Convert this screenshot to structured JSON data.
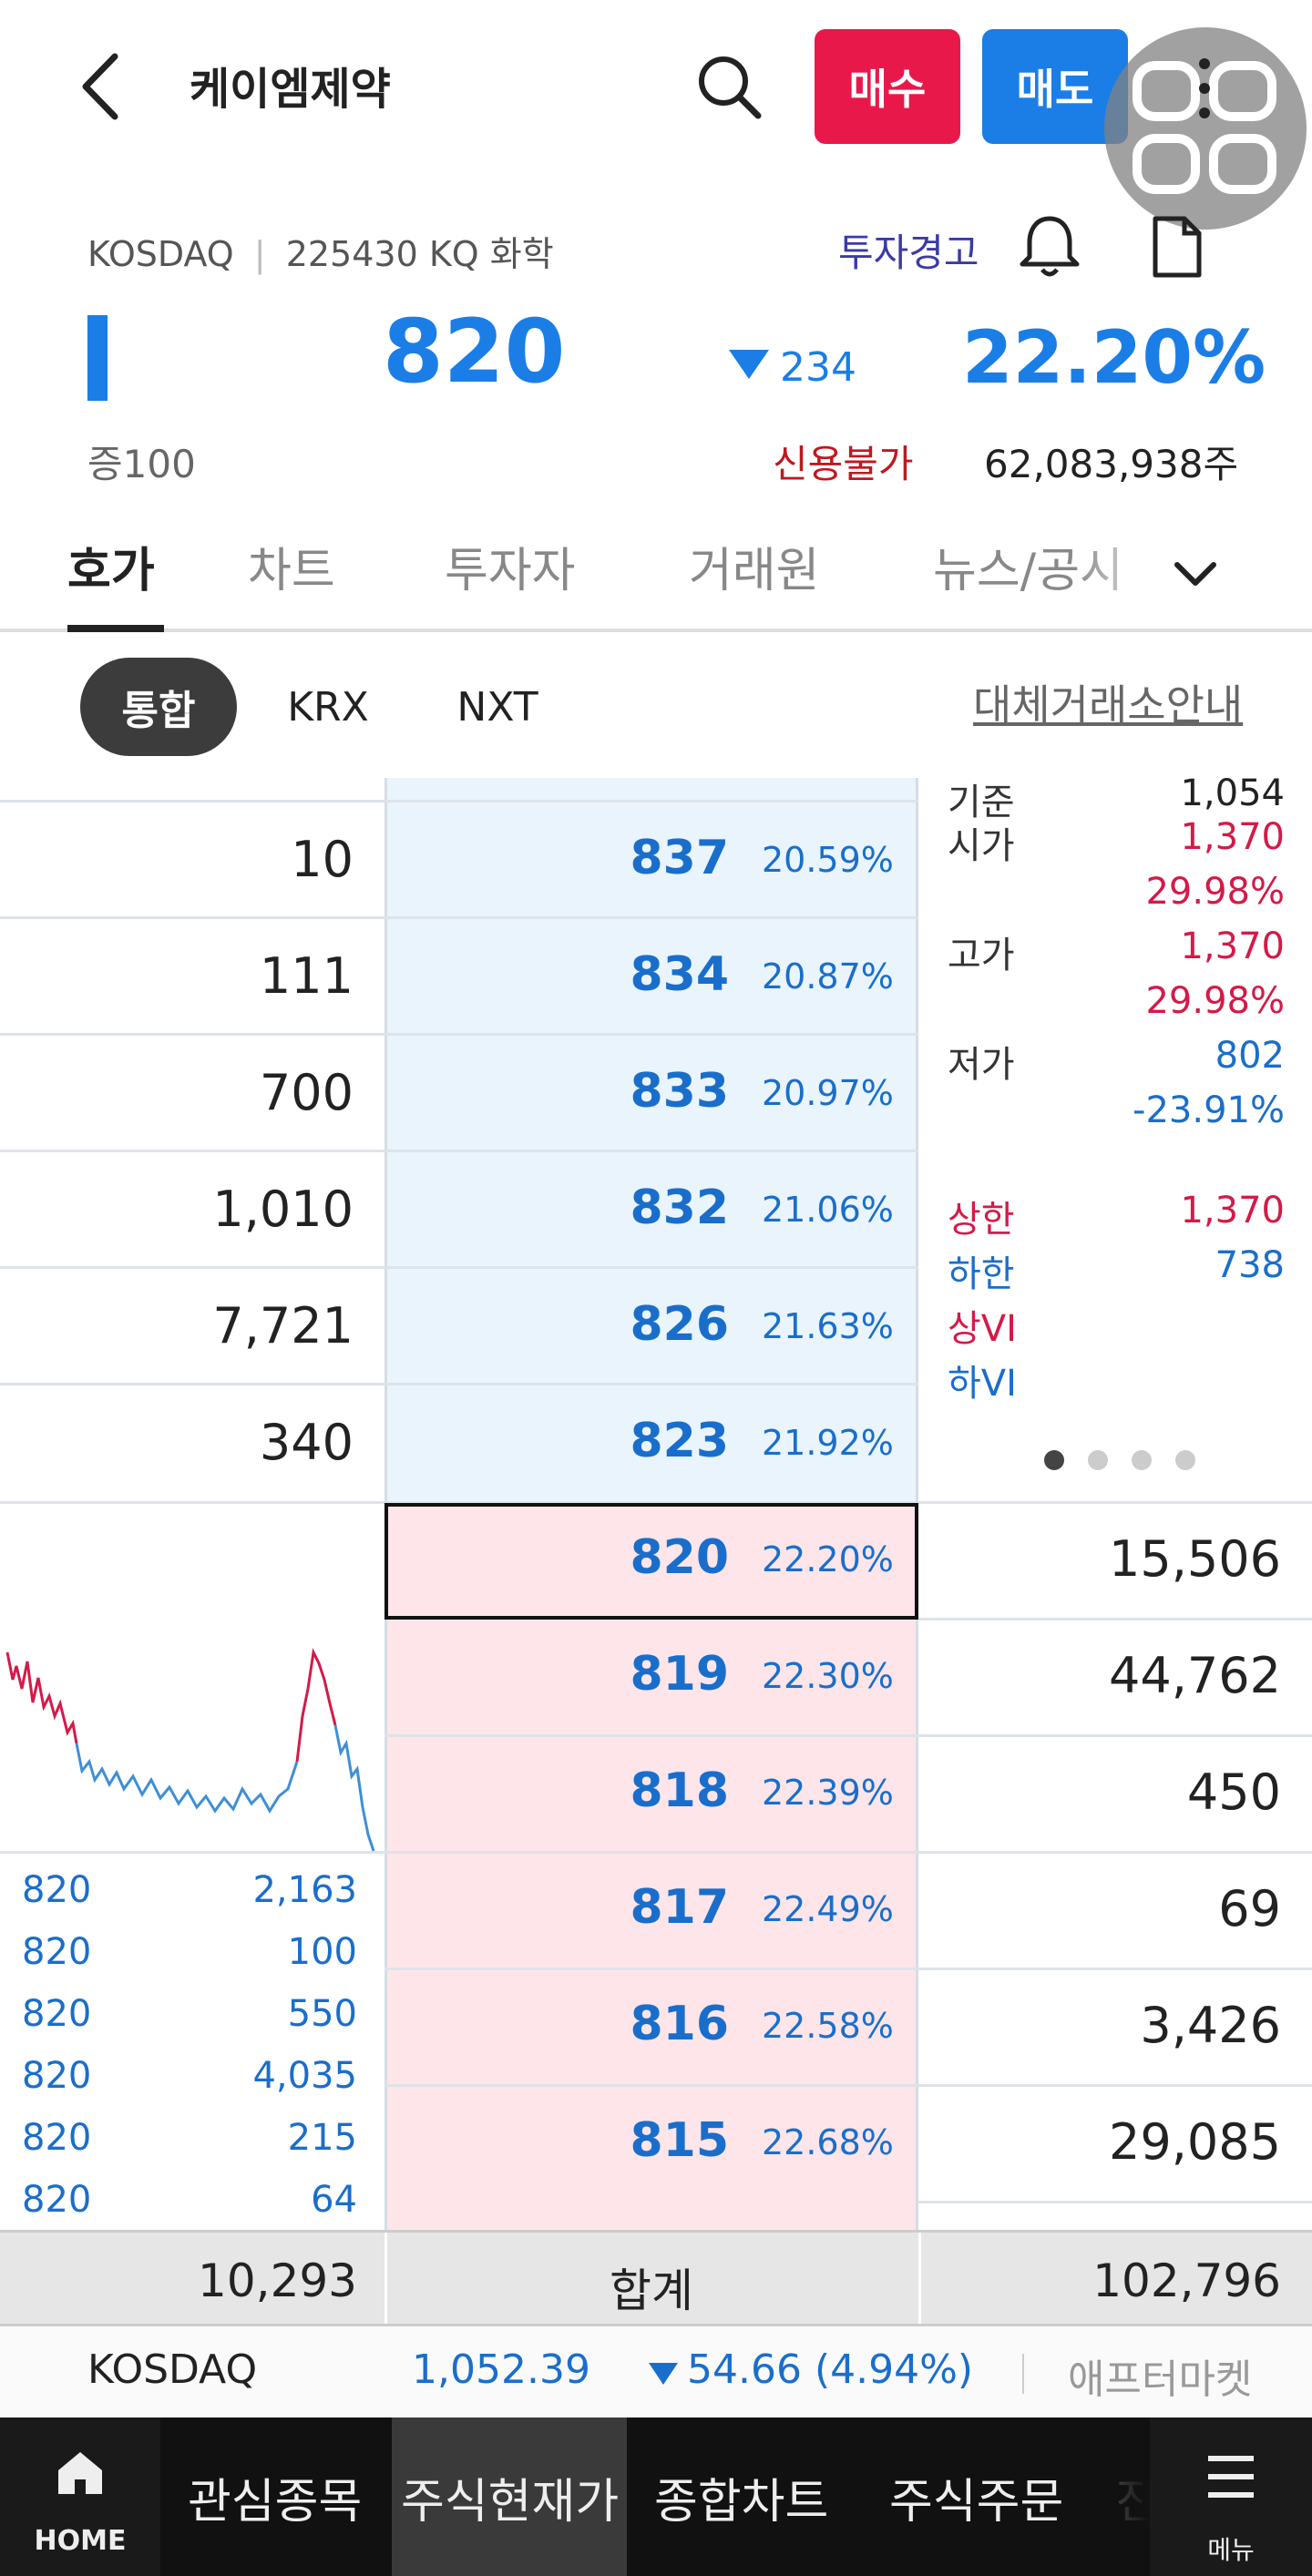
{
  "header": {
    "title": "케이엠제약",
    "buy_label": "매수",
    "sell_label": "매도"
  },
  "info": {
    "market": "KOSDAQ",
    "code": "225430 KQ 화학",
    "warning": "투자경고"
  },
  "price": {
    "current": "820",
    "change": "234",
    "change_pct": "22.20%",
    "margin": "증100",
    "credit": "신용불가",
    "shares": "62,083,938주"
  },
  "tabs": [
    "호가",
    "차트",
    "투자자",
    "거래원",
    "뉴스/공시"
  ],
  "exchanges": {
    "items": [
      "통합",
      "KRX",
      "NXT"
    ],
    "alt_link": "대체거래소안내"
  },
  "asks": [
    {
      "qty": "10",
      "price": "837",
      "pct": "20.59%"
    },
    {
      "qty": "111",
      "price": "834",
      "pct": "20.87%"
    },
    {
      "qty": "700",
      "price": "833",
      "pct": "20.97%"
    },
    {
      "qty": "1,010",
      "price": "832",
      "pct": "21.06%"
    },
    {
      "qty": "7,721",
      "price": "826",
      "pct": "21.63%"
    },
    {
      "qty": "340",
      "price": "823",
      "pct": "21.92%"
    }
  ],
  "bids": [
    {
      "price": "820",
      "pct": "22.20%",
      "qty": "15,506"
    },
    {
      "price": "819",
      "pct": "22.30%",
      "qty": "44,762"
    },
    {
      "price": "818",
      "pct": "22.39%",
      "qty": "450"
    },
    {
      "price": "817",
      "pct": "22.49%",
      "qty": "69"
    },
    {
      "price": "816",
      "pct": "22.58%",
      "qty": "3,426"
    },
    {
      "price": "815",
      "pct": "22.68%",
      "qty": "29,085"
    }
  ],
  "stats": {
    "base_label": "기준",
    "base_val": "1,054",
    "open_label": "시가",
    "open_val": "1,370",
    "open_pct": "29.98%",
    "high_label": "고가",
    "high_val": "1,370",
    "high_pct": "29.98%",
    "low_label": "저가",
    "low_val": "802",
    "low_pct": "-23.91%",
    "upper_label": "상한",
    "upper_val": "1,370",
    "lower_label": "하한",
    "lower_val": "738",
    "upvi_label": "상VI",
    "downvi_label": "하VI"
  },
  "ticks": [
    {
      "price": "820",
      "vol": "2,163"
    },
    {
      "price": "820",
      "vol": "100"
    },
    {
      "price": "820",
      "vol": "550"
    },
    {
      "price": "820",
      "vol": "4,035"
    },
    {
      "price": "820",
      "vol": "215"
    },
    {
      "price": "820",
      "vol": "64"
    }
  ],
  "totals": {
    "left": "10,293",
    "label": "합계",
    "right": "102,796"
  },
  "ticker": {
    "name": "KOSDAQ",
    "index": "1,052.39",
    "change": "54.66 (4.94%)",
    "after": "애프터마켓"
  },
  "nav": {
    "home": "HOME",
    "items": [
      "관심종목",
      "주식현재가",
      "종합차트",
      "주식주문",
      "진"
    ],
    "menu": "메뉴"
  },
  "colors": {
    "up": "#d41a48",
    "down": "#1a6ecb",
    "buy": "#e8194a",
    "sell": "#1a7ee6"
  }
}
